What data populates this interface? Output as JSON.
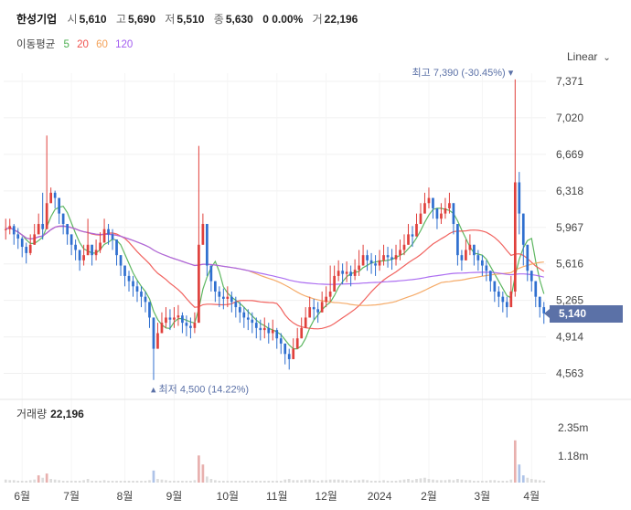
{
  "header": {
    "name": "한성기업",
    "open_label": "시",
    "open": "5,610",
    "high_label": "고",
    "high": "5,690",
    "low_label": "저",
    "low": "5,510",
    "close_label": "종",
    "close": "5,630",
    "change": "0 0.00%",
    "volume_label": "거",
    "volume": "22,196"
  },
  "ma_legend": {
    "title": "이동평균",
    "periods": [
      "5",
      "20",
      "60",
      "120"
    ],
    "colors": [
      "#4caf50",
      "#f0524e",
      "#f4a259",
      "#a35ef0"
    ]
  },
  "scale_selector": {
    "label": "Linear",
    "icon": "chevron-down-icon"
  },
  "volume_panel": {
    "title": "거래량",
    "value": "22,196"
  },
  "current_price": "5,140",
  "chart_data": {
    "type": "candlestick",
    "x_ticks": [
      "6월",
      "7월",
      "8월",
      "9월",
      "10월",
      "11월",
      "12월",
      "2024",
      "2월",
      "3월",
      "4월"
    ],
    "y_ticks": [
      "7,371",
      "7,020",
      "6,669",
      "6,318",
      "5,967",
      "5,616",
      "5,265",
      "4,914",
      "4,563"
    ],
    "y_range": [
      4480,
      7450
    ],
    "volume_ticks": [
      "2.35m",
      "1.18m"
    ],
    "annotations": {
      "high": "최고 7,390 (-30.45%)",
      "low": "최저 4,500 (14.22%)"
    },
    "colors": {
      "up": "#e0403c",
      "down": "#2f6fcf",
      "volume": "#dcdcdc",
      "volume_hi": "#e8b0ae"
    },
    "series_close": [
      5950,
      5980,
      5900,
      5860,
      5780,
      5720,
      5800,
      5900,
      6000,
      5950,
      6200,
      6300,
      6250,
      6100,
      6000,
      5900,
      5800,
      5750,
      5650,
      5700,
      5800,
      5700,
      5750,
      5820,
      5950,
      5900,
      5850,
      5700,
      5600,
      5500,
      5450,
      5400,
      5350,
      5300,
      5250,
      5100,
      4800,
      4950,
      5050,
      5100,
      5080,
      5100,
      5120,
      5050,
      5020,
      5000,
      5050,
      5800,
      6000,
      5600,
      5450,
      5350,
      5300,
      5280,
      5300,
      5250,
      5200,
      5150,
      5100,
      5080,
      5050,
      5000,
      4980,
      5000,
      4950,
      4980,
      4900,
      4850,
      4750,
      4700,
      4800,
      4900,
      5000,
      5100,
      5200,
      5180,
      5150,
      5250,
      5300,
      5350,
      5500,
      5550,
      5520,
      5540,
      5500,
      5560,
      5600,
      5700,
      5650,
      5620,
      5600,
      5650,
      5700,
      5680,
      5660,
      5700,
      5750,
      5800,
      5900,
      5880,
      6000,
      6100,
      6200,
      6250,
      6150,
      6050,
      6100,
      6150,
      6200,
      6000,
      5700,
      5650,
      5750,
      5800,
      5700,
      5650,
      5600,
      5550,
      5450,
      5350,
      5300,
      5250,
      5200,
      5350,
      6400,
      6100,
      5800,
      5550,
      5450,
      5300,
      5200,
      5140
    ],
    "series_high": [
      6050,
      6050,
      6000,
      5960,
      5880,
      5820,
      5900,
      6000,
      6100,
      6300,
      6850,
      6350,
      6320,
      6200,
      6100,
      6000,
      5900,
      5850,
      5750,
      5800,
      6050,
      5800,
      5850,
      5920,
      6050,
      6000,
      5950,
      5800,
      5700,
      5600,
      5550,
      5500,
      5450,
      5400,
      5350,
      5200,
      4950,
      5050,
      5150,
      5200,
      5180,
      5200,
      5220,
      5150,
      5120,
      5100,
      5150,
      6750,
      6100,
      5700,
      5550,
      5450,
      5400,
      5380,
      5400,
      5350,
      5300,
      5250,
      5200,
      5180,
      5150,
      5100,
      5080,
      5100,
      5050,
      5080,
      5000,
      4950,
      4850,
      4800,
      4900,
      5000,
      5100,
      5200,
      5300,
      5280,
      5250,
      5350,
      5400,
      5600,
      5600,
      5650,
      5620,
      5640,
      5600,
      5660,
      5750,
      5800,
      5750,
      5720,
      5700,
      5750,
      5800,
      5780,
      5760,
      5800,
      5850,
      5900,
      6000,
      5980,
      6100,
      6200,
      6300,
      6350,
      6250,
      6150,
      6200,
      6250,
      6300,
      6100,
      5800,
      5750,
      5850,
      5900,
      5800,
      5750,
      5700,
      5650,
      5550,
      5450,
      5400,
      5350,
      5300,
      5500,
      7390,
      6500,
      5950,
      5650,
      5550,
      5400,
      5300,
      5250
    ],
    "series_low": [
      5850,
      5900,
      5800,
      5760,
      5680,
      5620,
      5700,
      5800,
      5900,
      5850,
      6100,
      6200,
      6150,
      6000,
      5900,
      5800,
      5700,
      5650,
      5550,
      5600,
      5700,
      5600,
      5650,
      5720,
      5850,
      5800,
      5750,
      5600,
      5500,
      5400,
      5350,
      5300,
      5250,
      5200,
      5150,
      5000,
      4500,
      4850,
      4950,
      5000,
      4980,
      5000,
      5020,
      4950,
      4920,
      4900,
      4950,
      5100,
      5800,
      5500,
      5350,
      5250,
      5200,
      5180,
      5200,
      5150,
      5100,
      5050,
      5000,
      4980,
      4950,
      4900,
      4880,
      4900,
      4850,
      4880,
      4800,
      4750,
      4650,
      4600,
      4700,
      4800,
      4900,
      5000,
      5100,
      5080,
      5050,
      5150,
      5200,
      5250,
      5400,
      5450,
      5420,
      5440,
      5400,
      5460,
      5500,
      5600,
      5550,
      5520,
      5500,
      5550,
      5600,
      5580,
      5560,
      5600,
      5650,
      5700,
      5800,
      5780,
      5900,
      6000,
      6100,
      6150,
      6050,
      5950,
      6000,
      6050,
      6100,
      5900,
      5600,
      5550,
      5650,
      5700,
      5600,
      5550,
      5500,
      5450,
      5350,
      5250,
      5200,
      5150,
      5100,
      5250,
      5300,
      5900,
      5600,
      5450,
      5350,
      5200,
      5100,
      5040
    ],
    "volume_pct": [
      5,
      4,
      4,
      3,
      3,
      3,
      4,
      5,
      12,
      8,
      15,
      6,
      5,
      4,
      3,
      3,
      3,
      3,
      3,
      4,
      6,
      3,
      3,
      3,
      4,
      3,
      3,
      3,
      3,
      3,
      3,
      3,
      3,
      3,
      3,
      4,
      20,
      6,
      5,
      4,
      3,
      3,
      3,
      3,
      3,
      3,
      4,
      45,
      30,
      10,
      6,
      4,
      3,
      3,
      3,
      3,
      3,
      3,
      3,
      3,
      3,
      3,
      3,
      3,
      3,
      3,
      3,
      3,
      5,
      6,
      4,
      4,
      4,
      5,
      5,
      4,
      3,
      4,
      4,
      5,
      5,
      5,
      4,
      4,
      3,
      4,
      4,
      5,
      4,
      3,
      3,
      3,
      4,
      3,
      3,
      3,
      4,
      5,
      6,
      4,
      6,
      7,
      8,
      6,
      5,
      4,
      4,
      4,
      5,
      4,
      6,
      5,
      4,
      4,
      3,
      3,
      3,
      3,
      4,
      4,
      3,
      3,
      3,
      5,
      70,
      30,
      12,
      8,
      6,
      5,
      4,
      3
    ]
  }
}
